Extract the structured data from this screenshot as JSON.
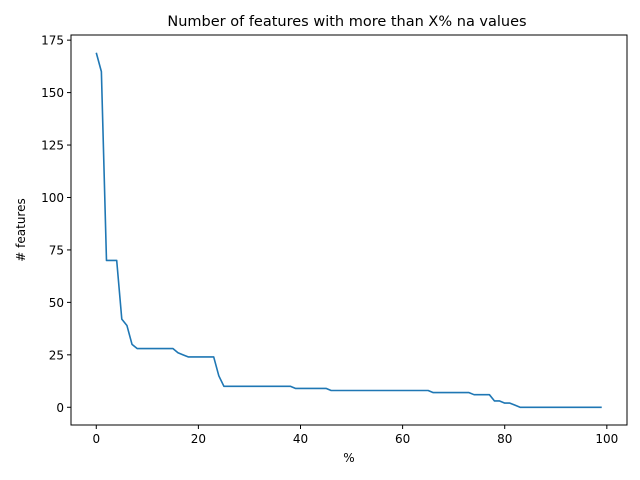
{
  "chart_data": {
    "type": "line",
    "title": "Number of features with more than X% na values",
    "xlabel": "%",
    "ylabel": "# features",
    "xlim": [
      -4.95,
      103.95
    ],
    "ylim": [
      -8.45,
      177.45
    ],
    "xticks": [
      0,
      20,
      40,
      60,
      80,
      100
    ],
    "yticks": [
      0,
      25,
      50,
      75,
      100,
      125,
      150,
      175
    ],
    "grid": false,
    "line_color": "#1f77b4",
    "x": [
      0,
      1,
      2,
      3,
      4,
      5,
      6,
      7,
      8,
      9,
      10,
      11,
      12,
      13,
      14,
      15,
      16,
      17,
      18,
      19,
      20,
      21,
      22,
      23,
      24,
      25,
      26,
      27,
      28,
      29,
      30,
      31,
      32,
      33,
      34,
      35,
      36,
      37,
      38,
      39,
      40,
      41,
      42,
      43,
      44,
      45,
      46,
      47,
      48,
      49,
      50,
      51,
      52,
      53,
      54,
      55,
      56,
      57,
      58,
      59,
      60,
      61,
      62,
      63,
      64,
      65,
      66,
      67,
      68,
      69,
      70,
      71,
      72,
      73,
      74,
      75,
      76,
      77,
      78,
      79,
      80,
      81,
      82,
      83,
      84,
      85,
      86,
      87,
      88,
      89,
      90,
      91,
      92,
      93,
      94,
      95,
      96,
      97,
      98,
      99
    ],
    "y": [
      169,
      160,
      70,
      70,
      70,
      42,
      39,
      30,
      28,
      28,
      28,
      28,
      28,
      28,
      28,
      28,
      26,
      25,
      24,
      24,
      24,
      24,
      24,
      24,
      15,
      10,
      10,
      10,
      10,
      10,
      10,
      10,
      10,
      10,
      10,
      10,
      10,
      10,
      10,
      9,
      9,
      9,
      9,
      9,
      9,
      9,
      8,
      8,
      8,
      8,
      8,
      8,
      8,
      8,
      8,
      8,
      8,
      8,
      8,
      8,
      8,
      8,
      8,
      8,
      8,
      8,
      7,
      7,
      7,
      7,
      7,
      7,
      7,
      7,
      6,
      6,
      6,
      6,
      3,
      3,
      2,
      2,
      1,
      0,
      0,
      0,
      0,
      0,
      0,
      0,
      0,
      0,
      0,
      0,
      0,
      0,
      0,
      0,
      0,
      0
    ]
  }
}
